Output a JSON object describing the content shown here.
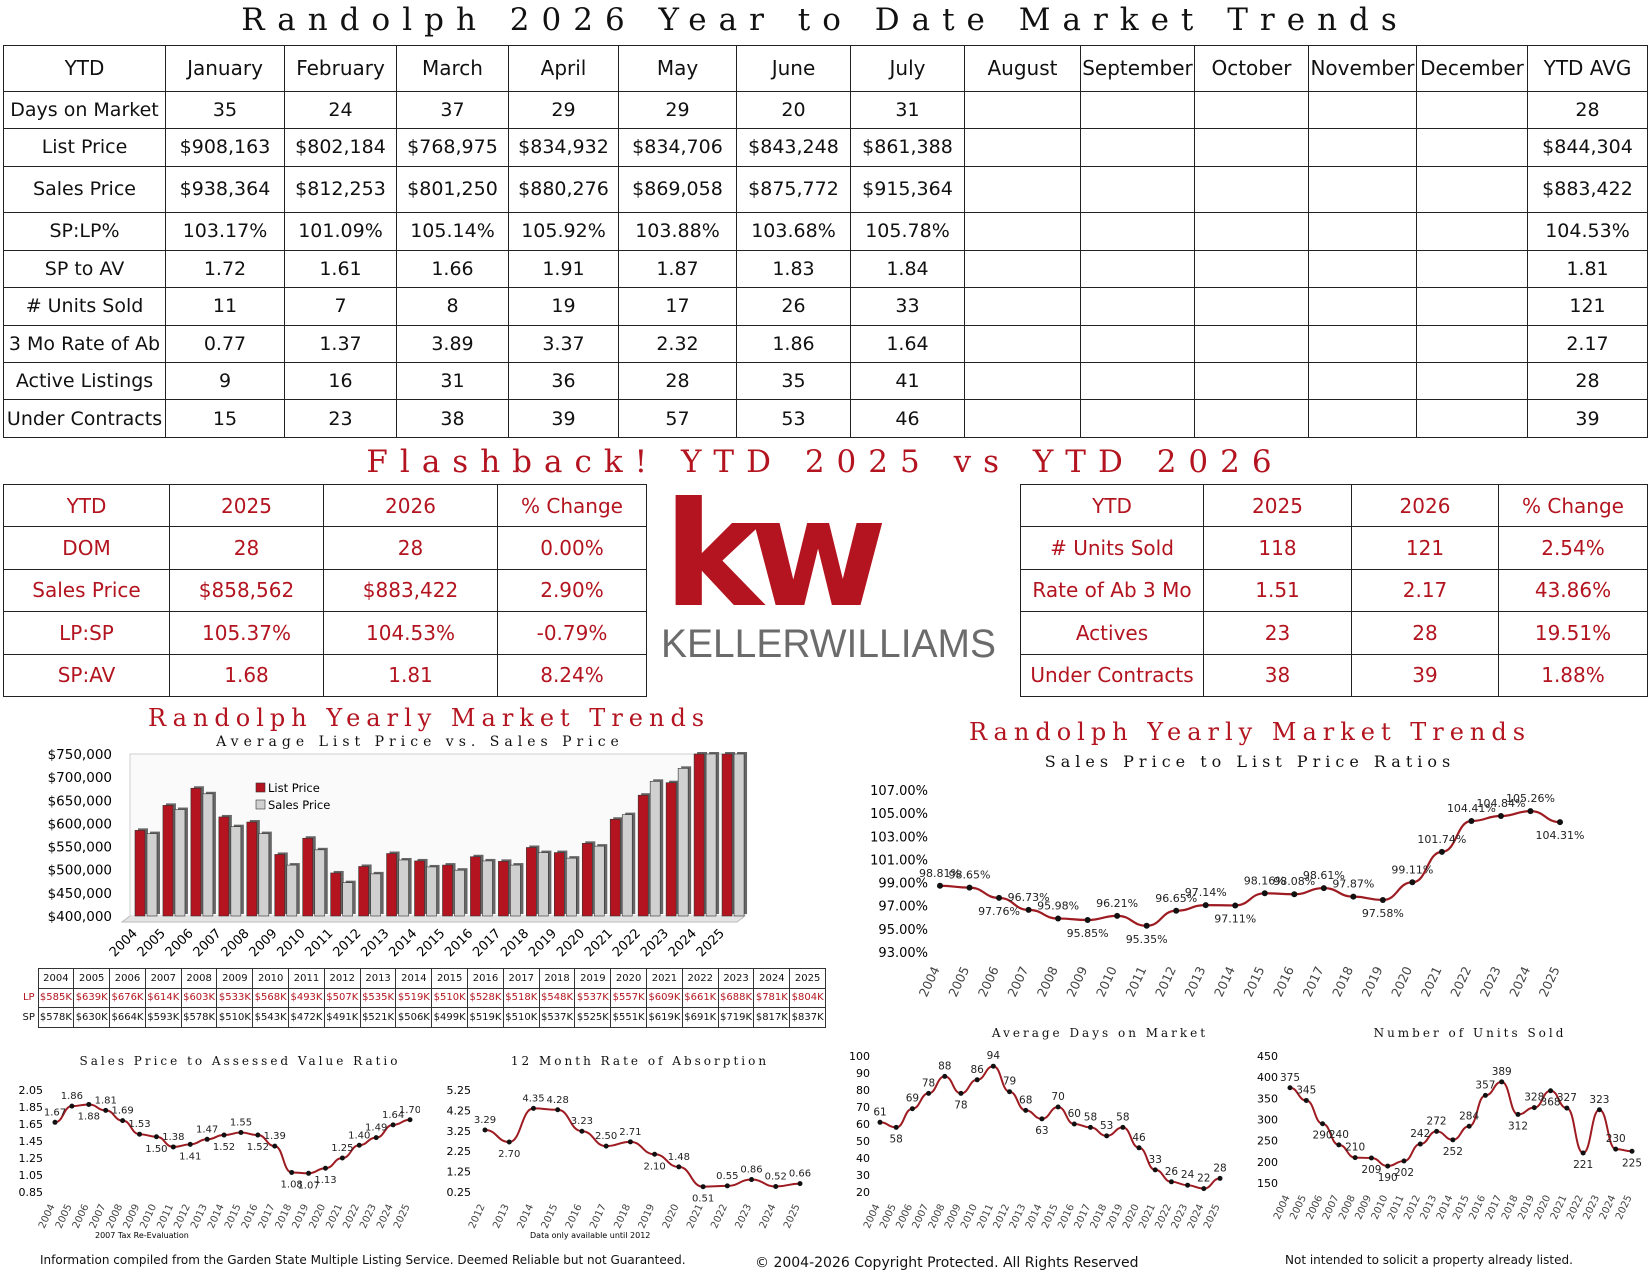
{
  "header": {
    "main_title": "Randolph 2026 Year to Date Market Trends",
    "flashback_title": "Flashback!  YTD 2025 vs YTD 2026"
  },
  "ytd_table": {
    "columns": [
      "YTD",
      "January",
      "February",
      "March",
      "April",
      "May",
      "June",
      "July",
      "August",
      "September",
      "October",
      "November",
      "December",
      "YTD AVG"
    ],
    "rows": [
      {
        "label": "Days on Market",
        "values": [
          "35",
          "24",
          "37",
          "29",
          "29",
          "20",
          "31",
          "",
          "",
          "",
          "",
          "",
          ""
        ],
        "avg": "28"
      },
      {
        "label": "List Price",
        "values": [
          "$908,163",
          "$802,184",
          "$768,975",
          "$834,932",
          "$834,706",
          "$843,248",
          "$861,388",
          "",
          "",
          "",
          "",
          "",
          ""
        ],
        "avg": "$844,304"
      },
      {
        "label": "Sales Price",
        "values": [
          "$938,364",
          "$812,253",
          "$801,250",
          "$880,276",
          "$869,058",
          "$875,772",
          "$915,364",
          "",
          "",
          "",
          "",
          "",
          ""
        ],
        "avg": "$883,422"
      },
      {
        "label": "SP:LP%",
        "values": [
          "103.17%",
          "101.09%",
          "105.14%",
          "105.92%",
          "103.88%",
          "103.68%",
          "105.78%",
          "",
          "",
          "",
          "",
          "",
          ""
        ],
        "avg": "104.53%"
      },
      {
        "label": "SP to AV",
        "values": [
          "1.72",
          "1.61",
          "1.66",
          "1.91",
          "1.87",
          "1.83",
          "1.84",
          "",
          "",
          "",
          "",
          "",
          ""
        ],
        "avg": "1.81"
      },
      {
        "label": "# Units Sold",
        "values": [
          "11",
          "7",
          "8",
          "19",
          "17",
          "26",
          "33",
          "",
          "",
          "",
          "",
          "",
          ""
        ],
        "avg": "121"
      },
      {
        "label": "3 Mo Rate of Ab",
        "values": [
          "0.77",
          "1.37",
          "3.89",
          "3.37",
          "2.32",
          "1.86",
          "1.64",
          "",
          "",
          "",
          "",
          "",
          ""
        ],
        "avg": "2.17"
      },
      {
        "label": "Active Listings",
        "values": [
          "9",
          "16",
          "31",
          "36",
          "28",
          "35",
          "41",
          "",
          "",
          "",
          "",
          "",
          ""
        ],
        "avg": "28"
      },
      {
        "label": "Under Contracts",
        "values": [
          "15",
          "23",
          "38",
          "39",
          "57",
          "53",
          "46",
          "",
          "",
          "",
          "",
          "",
          ""
        ],
        "avg": "39"
      }
    ]
  },
  "flashback_left": {
    "columns": [
      "YTD",
      "2025",
      "2026",
      "% Change"
    ],
    "rows": [
      [
        "DOM",
        "28",
        "28",
        "0.00%"
      ],
      [
        "Sales Price",
        "$858,562",
        "$883,422",
        "2.90%"
      ],
      [
        "LP:SP",
        "105.37%",
        "104.53%",
        "-0.79%"
      ],
      [
        "SP:AV",
        "1.68",
        "1.81",
        "8.24%"
      ]
    ]
  },
  "flashback_right": {
    "columns": [
      "YTD",
      "2025",
      "2026",
      "% Change"
    ],
    "rows": [
      [
        "# Units Sold",
        "118",
        "121",
        "2.54%"
      ],
      [
        "Rate of Ab 3 Mo",
        "1.51",
        "2.17",
        "43.86%"
      ],
      [
        "Actives",
        "23",
        "28",
        "19.51%"
      ],
      [
        "Under Contracts",
        "38",
        "39",
        "1.88%"
      ]
    ]
  },
  "logo": {
    "kw": "kw",
    "company": "KELLERWILLIAMS",
    "brand_color": "#b3141f"
  },
  "chart_data": [
    {
      "id": "price-bars",
      "type": "bar",
      "title": "Randolph Yearly Market Trends",
      "subtitle": "Average List Price vs. Sales Price",
      "categories": [
        "2004",
        "2005",
        "2006",
        "2007",
        "2008",
        "2009",
        "2010",
        "2011",
        "2012",
        "2013",
        "2014",
        "2015",
        "2016",
        "2017",
        "2018",
        "2019",
        "2020",
        "2021",
        "2022",
        "2023",
        "2024",
        "2025"
      ],
      "series": [
        {
          "name": "List Price",
          "color": "#b3141f",
          "values": [
            585,
            639,
            676,
            614,
            603,
            533,
            568,
            493,
            507,
            535,
            519,
            510,
            528,
            518,
            548,
            537,
            557,
            609,
            661,
            688,
            781,
            804
          ]
        },
        {
          "name": "Sales Price",
          "color": "#d0d0d0",
          "values": [
            578,
            630,
            664,
            593,
            578,
            510,
            543,
            472,
            491,
            521,
            506,
            499,
            519,
            510,
            537,
            525,
            551,
            619,
            691,
            719,
            817,
            837
          ]
        }
      ],
      "ylim": [
        400000,
        750000
      ],
      "yticks": [
        "$400,000",
        "$450,000",
        "$500,000",
        "$550,000",
        "$600,000",
        "$650,000",
        "$700,000",
        "$750,000"
      ],
      "legend": "top-left",
      "table": {
        "lp_label": "LP",
        "sp_label": "SP",
        "lp": [
          "$585K",
          "$639K",
          "$676K",
          "$614K",
          "$603K",
          "$533K",
          "$568K",
          "$493K",
          "$507K",
          "$535K",
          "$519K",
          "$510K",
          "$528K",
          "$518K",
          "$548K",
          "$537K",
          "$557K",
          "$609K",
          "$661K",
          "$688K",
          "$781K",
          "$804K"
        ],
        "sp": [
          "$578K",
          "$630K",
          "$664K",
          "$593K",
          "$578K",
          "$510K",
          "$543K",
          "$472K",
          "$491K",
          "$521K",
          "$506K",
          "$499K",
          "$519K",
          "$510K",
          "$537K",
          "$525K",
          "$551K",
          "$619K",
          "$691K",
          "$719K",
          "$817K",
          "$837K"
        ]
      }
    },
    {
      "id": "splp-line",
      "type": "line",
      "title": "Randolph Yearly Market Trends",
      "subtitle": "Sales Price to List Price Ratios",
      "x": [
        "2004",
        "2005",
        "2006",
        "2007",
        "2008",
        "2009",
        "2010",
        "2011",
        "2012",
        "2013",
        "2014",
        "2015",
        "2016",
        "2017",
        "2018",
        "2019",
        "2020",
        "2021",
        "2022",
        "2023",
        "2024",
        "2025"
      ],
      "values": [
        98.81,
        98.65,
        97.76,
        96.73,
        95.98,
        95.85,
        96.21,
        95.35,
        96.65,
        97.14,
        97.11,
        98.16,
        98.08,
        98.61,
        97.87,
        97.58,
        99.11,
        101.74,
        104.41,
        104.84,
        105.26,
        104.31
      ],
      "labels": [
        "98.81%",
        "98.65%",
        "97.76%",
        "96.73%",
        "95.98%",
        "95.85%",
        "96.21%",
        "95.35%",
        "96.65%",
        "97.14%",
        "97.11%",
        "98.16%",
        "98.08%",
        "98.61%",
        "97.87%",
        "97.58%",
        "99.11%",
        "101.74%",
        "104.41%",
        "104.84%",
        "105.26%",
        "104.31%"
      ],
      "ylim": [
        93,
        107
      ],
      "yticks": [
        "93.00%",
        "95.00%",
        "97.00%",
        "99.00%",
        "101.00%",
        "103.00%",
        "105.00%",
        "107.00%"
      ]
    },
    {
      "id": "spav-line",
      "type": "line",
      "title": "Sales Price to Assessed Value Ratio",
      "x": [
        "2004",
        "2005",
        "2006",
        "2007",
        "2008",
        "2009",
        "2010",
        "2011",
        "2012",
        "2013",
        "2014",
        "2015",
        "2016",
        "2017",
        "2018",
        "2019",
        "2020",
        "2021",
        "2022",
        "2023",
        "2024",
        "2025"
      ],
      "values": [
        1.67,
        1.86,
        1.88,
        1.81,
        1.69,
        1.53,
        1.5,
        1.38,
        1.41,
        1.47,
        1.52,
        1.55,
        1.52,
        1.39,
        1.08,
        1.07,
        1.13,
        1.25,
        1.4,
        1.49,
        1.64,
        1.7
      ],
      "labels": [
        "1.67",
        "1.86",
        "1.88",
        "1.81",
        "1.69",
        "1.53",
        "1.50",
        "1.38",
        "1.41",
        "1.47",
        "1.52",
        "1.55",
        "1.52",
        "1.39",
        "1.08",
        "1.07",
        "1.13",
        "1.25",
        "1.40",
        "1.49",
        "1.64",
        "1.70"
      ],
      "ylim": [
        0.85,
        2.05
      ],
      "yticks": [
        "0.85",
        "1.05",
        "1.25",
        "1.45",
        "1.65",
        "1.85",
        "2.05"
      ],
      "note": "2007 Tax Re-Evaluation"
    },
    {
      "id": "absorption-line",
      "type": "line",
      "title": "12 Month Rate of Absorption",
      "x": [
        "2012",
        "2013",
        "2014",
        "2015",
        "2016",
        "2017",
        "2018",
        "2019",
        "2020",
        "2021",
        "2022",
        "2023",
        "2024",
        "2025"
      ],
      "values": [
        3.29,
        2.7,
        4.35,
        4.28,
        3.23,
        2.5,
        2.71,
        2.1,
        1.48,
        0.51,
        0.55,
        0.86,
        0.52,
        0.66
      ],
      "labels": [
        "3.29",
        "2.70",
        "4.35",
        "4.28",
        "3.23",
        "2.50",
        "2.71",
        "2.10",
        "1.48",
        "0.51",
        "0.55",
        "0.86",
        "0.52",
        "0.66"
      ],
      "ylim": [
        0.25,
        5.25
      ],
      "yticks": [
        "0.25",
        "1.25",
        "2.25",
        "3.25",
        "4.25",
        "5.25"
      ],
      "note": "Data only available until 2012"
    },
    {
      "id": "dom-line",
      "type": "line",
      "title": "Average Days on Market",
      "x": [
        "2004",
        "2005",
        "2006",
        "2007",
        "2008",
        "2009",
        "2010",
        "2011",
        "2012",
        "2013",
        "2014",
        "2015",
        "2016",
        "2017",
        "2018",
        "2019",
        "2020",
        "2021",
        "2022",
        "2023",
        "2024",
        "2025"
      ],
      "values": [
        61,
        58,
        69,
        78,
        88,
        78,
        86,
        94,
        79,
        68,
        63,
        70,
        60,
        58,
        53,
        58,
        46,
        33,
        26,
        24,
        22,
        28
      ],
      "labels": [
        "61",
        "58",
        "69",
        "78",
        "88",
        "78",
        "86",
        "94",
        "79",
        "68",
        "63",
        "70",
        "60",
        "58",
        "53",
        "58",
        "46",
        "33",
        "26",
        "24",
        "22",
        "28"
      ],
      "ylim": [
        20,
        100
      ],
      "yticks": [
        "20",
        "30",
        "40",
        "50",
        "60",
        "70",
        "80",
        "90",
        "100"
      ]
    },
    {
      "id": "units-line",
      "type": "line",
      "title": "Number of Units Sold",
      "x": [
        "2004",
        "2005",
        "2006",
        "2007",
        "2008",
        "2009",
        "2010",
        "2011",
        "2012",
        "2013",
        "2014",
        "2015",
        "2016",
        "2017",
        "2018",
        "2019",
        "2020",
        "2021",
        "2022",
        "2023",
        "2024",
        "2025"
      ],
      "values": [
        375,
        345,
        290,
        240,
        210,
        209,
        190,
        202,
        242,
        272,
        252,
        284,
        357,
        389,
        312,
        328,
        368,
        327,
        221,
        323,
        230,
        225
      ],
      "labels": [
        "375",
        "345",
        "290",
        "240",
        "210",
        "209",
        "190",
        "202",
        "242",
        "272",
        "252",
        "284",
        "357",
        "389",
        "312",
        "328",
        "368",
        "327",
        "221",
        "323",
        "230",
        "225"
      ],
      "ylim": [
        150,
        450
      ],
      "yticks": [
        "150",
        "200",
        "250",
        "300",
        "350",
        "400",
        "450"
      ]
    }
  ],
  "footer": {
    "left": "Information compiled from the Garden State Multiple Listing Service.  Deemed Reliable but not Guaranteed.",
    "center": "© 2004-2026 Copyright Protected.  All Rights Reserved",
    "right": "Not intended to solicit a property already listed."
  }
}
